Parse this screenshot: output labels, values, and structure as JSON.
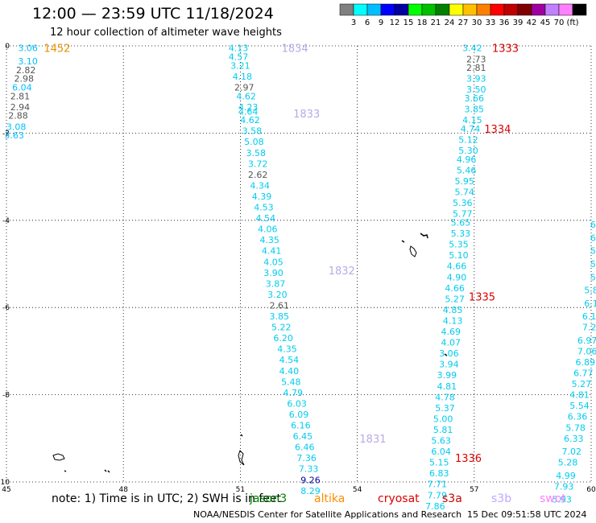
{
  "title": "12:00 — 23:59 UTC 11/18/2024",
  "subtitle": "12 hour collection of altimeter wave heights",
  "colorbar": {
    "colors": [
      "#808080",
      "#00ffff",
      "#00bfff",
      "#0000ff",
      "#0000a0",
      "#00ff00",
      "#00c000",
      "#008000",
      "#ffff00",
      "#ffc000",
      "#ff8000",
      "#ff0000",
      "#c00000",
      "#800000",
      "#a000a0",
      "#c080ff",
      "#ff80ff",
      "#000000"
    ],
    "labels": [
      "3",
      "6",
      "9",
      "12",
      "15",
      "18",
      "21",
      "24",
      "27",
      "30",
      "33",
      "36",
      "39",
      "42",
      "45",
      "70",
      "(ft)"
    ]
  },
  "axes": {
    "x_ticks": [
      "45",
      "48",
      "51",
      "54",
      "57",
      "60"
    ],
    "y_ticks": [
      "0",
      "-2",
      "-4",
      "-6",
      "-8",
      "-10"
    ]
  },
  "tracks": [
    {
      "color": "#00bfff",
      "points": [
        {
          "lon": 45.55,
          "lat": -0.05,
          "v": "3.06"
        },
        {
          "lon": 45.55,
          "lat": -0.35,
          "v": "3.10"
        },
        {
          "lon": 45.5,
          "lat": -0.55,
          "v": "2.82",
          "c": "#555555"
        },
        {
          "lon": 45.45,
          "lat": -0.75,
          "v": "2.98",
          "c": "#555555"
        },
        {
          "lon": 45.4,
          "lat": -0.95,
          "v": "6.04"
        },
        {
          "lon": 45.35,
          "lat": -1.15,
          "v": "2.81",
          "c": "#555555"
        },
        {
          "lon": 45.35,
          "lat": -1.4,
          "v": "2.94",
          "c": "#555555"
        },
        {
          "lon": 45.3,
          "lat": -1.6,
          "v": "2.88",
          "c": "#555555"
        },
        {
          "lon": 45.25,
          "lat": -1.85,
          "v": "3.08"
        },
        {
          "lon": 45.2,
          "lat": -2.05,
          "v": "3.63"
        }
      ]
    },
    {
      "color": "#00ccee",
      "points": [
        {
          "lon": 50.95,
          "lat": -0.05,
          "v": "4.13"
        },
        {
          "lon": 50.95,
          "lat": -0.25,
          "v": "4.57"
        },
        {
          "lon": 51.0,
          "lat": -0.45,
          "v": "3.21"
        },
        {
          "lon": 51.05,
          "lat": -0.7,
          "v": "4.18"
        },
        {
          "lon": 51.1,
          "lat": -0.95,
          "v": "2.97",
          "c": "#555555"
        },
        {
          "lon": 51.15,
          "lat": -1.15,
          "v": "4.62"
        },
        {
          "lon": 51.2,
          "lat": -1.4,
          "v": "4.23"
        },
        {
          "lon": 51.2,
          "lat": -1.5,
          "v": "4.64"
        },
        {
          "lon": 51.25,
          "lat": -1.7,
          "v": "4.62"
        },
        {
          "lon": 51.3,
          "lat": -1.95,
          "v": "3.58"
        },
        {
          "lon": 51.35,
          "lat": -2.2,
          "v": "5.08"
        },
        {
          "lon": 51.4,
          "lat": -2.45,
          "v": "3.58"
        },
        {
          "lon": 51.45,
          "lat": -2.7,
          "v": "3.72"
        },
        {
          "lon": 51.45,
          "lat": -2.95,
          "v": "2.62",
          "c": "#555555"
        },
        {
          "lon": 51.5,
          "lat": -3.2,
          "v": "4.34"
        },
        {
          "lon": 51.55,
          "lat": -3.45,
          "v": "4.39"
        },
        {
          "lon": 51.6,
          "lat": -3.7,
          "v": "4.53"
        },
        {
          "lon": 51.65,
          "lat": -3.95,
          "v": "4.54"
        },
        {
          "lon": 51.7,
          "lat": -4.2,
          "v": "4.06"
        },
        {
          "lon": 51.75,
          "lat": -4.45,
          "v": "4.35"
        },
        {
          "lon": 51.8,
          "lat": -4.7,
          "v": "4.41"
        },
        {
          "lon": 51.85,
          "lat": -4.95,
          "v": "4.05"
        },
        {
          "lon": 51.85,
          "lat": -5.2,
          "v": "3.90"
        },
        {
          "lon": 51.9,
          "lat": -5.45,
          "v": "3.87"
        },
        {
          "lon": 51.95,
          "lat": -5.7,
          "v": "3.20"
        },
        {
          "lon": 52.0,
          "lat": -5.95,
          "v": "2.61",
          "c": "#555555"
        },
        {
          "lon": 52.0,
          "lat": -6.2,
          "v": "3.85"
        },
        {
          "lon": 52.05,
          "lat": -6.45,
          "v": "5.22"
        },
        {
          "lon": 52.1,
          "lat": -6.7,
          "v": "6.20"
        },
        {
          "lon": 52.2,
          "lat": -6.95,
          "v": "4.35"
        },
        {
          "lon": 52.25,
          "lat": -7.2,
          "v": "4.54"
        },
        {
          "lon": 52.25,
          "lat": -7.45,
          "v": "4.40"
        },
        {
          "lon": 52.3,
          "lat": -7.7,
          "v": "5.48"
        },
        {
          "lon": 52.35,
          "lat": -7.95,
          "v": "4.79"
        },
        {
          "lon": 52.45,
          "lat": -8.2,
          "v": "6.03"
        },
        {
          "lon": 52.5,
          "lat": -8.45,
          "v": "6.09"
        },
        {
          "lon": 52.55,
          "lat": -8.7,
          "v": "6.16"
        },
        {
          "lon": 52.6,
          "lat": -8.95,
          "v": "6.45"
        },
        {
          "lon": 52.65,
          "lat": -9.2,
          "v": "6.46"
        },
        {
          "lon": 52.7,
          "lat": -9.45,
          "v": "7.36"
        },
        {
          "lon": 52.75,
          "lat": -9.7,
          "v": "7.33"
        },
        {
          "lon": 52.8,
          "lat": -9.95,
          "v": "9.26",
          "c": "#0000a0"
        },
        {
          "lon": 52.8,
          "lat": -10.2,
          "v": "8.29"
        }
      ]
    },
    {
      "color": "#00ccee",
      "points": [
        {
          "lon": 56.95,
          "lat": -0.05,
          "v": "3.42"
        },
        {
          "lon": 57.05,
          "lat": -0.3,
          "v": "2.73",
          "c": "#555555"
        },
        {
          "lon": 57.05,
          "lat": -0.5,
          "v": "2.81",
          "c": "#555555"
        },
        {
          "lon": 57.05,
          "lat": -0.75,
          "v": "3.93"
        },
        {
          "lon": 57.05,
          "lat": -1.0,
          "v": "3.50"
        },
        {
          "lon": 57.0,
          "lat": -1.2,
          "v": "3.66"
        },
        {
          "lon": 57.0,
          "lat": -1.45,
          "v": "3.85"
        },
        {
          "lon": 56.95,
          "lat": -1.7,
          "v": "4.15"
        },
        {
          "lon": 56.9,
          "lat": -1.9,
          "v": "4.74"
        },
        {
          "lon": 56.85,
          "lat": -2.15,
          "v": "5.12"
        },
        {
          "lon": 56.85,
          "lat": -2.4,
          "v": "5.30"
        },
        {
          "lon": 56.8,
          "lat": -2.6,
          "v": "4.96"
        },
        {
          "lon": 56.8,
          "lat": -2.85,
          "v": "5.46"
        },
        {
          "lon": 56.75,
          "lat": -3.1,
          "v": "5.95"
        },
        {
          "lon": 56.75,
          "lat": -3.35,
          "v": "5.74"
        },
        {
          "lon": 56.7,
          "lat": -3.6,
          "v": "5.36"
        },
        {
          "lon": 56.7,
          "lat": -3.85,
          "v": "5.77"
        },
        {
          "lon": 56.65,
          "lat": -4.05,
          "v": "5.65"
        },
        {
          "lon": 56.65,
          "lat": -4.3,
          "v": "5.33"
        },
        {
          "lon": 56.6,
          "lat": -4.55,
          "v": "5.35"
        },
        {
          "lon": 56.6,
          "lat": -4.8,
          "v": "5.10"
        },
        {
          "lon": 56.55,
          "lat": -5.05,
          "v": "4.66"
        },
        {
          "lon": 56.55,
          "lat": -5.3,
          "v": "4.90"
        },
        {
          "lon": 56.5,
          "lat": -5.55,
          "v": "4.66"
        },
        {
          "lon": 56.5,
          "lat": -5.8,
          "v": "5.27"
        },
        {
          "lon": 56.45,
          "lat": -6.05,
          "v": "4.85"
        },
        {
          "lon": 56.45,
          "lat": -6.3,
          "v": "4.13"
        },
        {
          "lon": 56.4,
          "lat": -6.55,
          "v": "4.69"
        },
        {
          "lon": 56.4,
          "lat": -6.8,
          "v": "4.07"
        },
        {
          "lon": 56.35,
          "lat": -7.05,
          "v": "3.06"
        },
        {
          "lon": 56.35,
          "lat": -7.3,
          "v": "3.94"
        },
        {
          "lon": 56.3,
          "lat": -7.55,
          "v": "3.99"
        },
        {
          "lon": 56.3,
          "lat": -7.8,
          "v": "4.81"
        },
        {
          "lon": 56.25,
          "lat": -8.05,
          "v": "4.78"
        },
        {
          "lon": 56.25,
          "lat": -8.3,
          "v": "5.37"
        },
        {
          "lon": 56.2,
          "lat": -8.55,
          "v": "5.00"
        },
        {
          "lon": 56.2,
          "lat": -8.8,
          "v": "5.81"
        },
        {
          "lon": 56.15,
          "lat": -9.05,
          "v": "5.63"
        },
        {
          "lon": 56.15,
          "lat": -9.3,
          "v": "6.04"
        },
        {
          "lon": 56.1,
          "lat": -9.55,
          "v": "5.15"
        },
        {
          "lon": 56.1,
          "lat": -9.8,
          "v": "6.83"
        },
        {
          "lon": 56.05,
          "lat": -10.05,
          "v": "7.71"
        },
        {
          "lon": 56.05,
          "lat": -10.3,
          "v": "7.79"
        },
        {
          "lon": 56.0,
          "lat": -10.55,
          "v": "7.86"
        }
      ]
    },
    {
      "color": "#00ccee",
      "points": [
        {
          "lon": 60.05,
          "lat": -4.1,
          "v": "6"
        },
        {
          "lon": 60.05,
          "lat": -4.4,
          "v": "6"
        },
        {
          "lon": 60.05,
          "lat": -4.7,
          "v": "5"
        },
        {
          "lon": 60.05,
          "lat": -5.0,
          "v": "5"
        },
        {
          "lon": 60.05,
          "lat": -5.3,
          "v": "5"
        },
        {
          "lon": 60.0,
          "lat": -5.6,
          "v": "5.8"
        },
        {
          "lon": 60.0,
          "lat": -5.9,
          "v": "6.1"
        },
        {
          "lon": 59.95,
          "lat": -6.2,
          "v": "6.1"
        },
        {
          "lon": 59.95,
          "lat": -6.45,
          "v": "7.2"
        },
        {
          "lon": 59.9,
          "lat": -6.75,
          "v": "6.97"
        },
        {
          "lon": 59.9,
          "lat": -7.0,
          "v": "7.06"
        },
        {
          "lon": 59.85,
          "lat": -7.25,
          "v": "6.89"
        },
        {
          "lon": 59.8,
          "lat": -7.5,
          "v": "6.77"
        },
        {
          "lon": 59.75,
          "lat": -7.75,
          "v": "5.27"
        },
        {
          "lon": 59.7,
          "lat": -8.0,
          "v": "4.81"
        },
        {
          "lon": 59.7,
          "lat": -8.25,
          "v": "5.54"
        },
        {
          "lon": 59.65,
          "lat": -8.5,
          "v": "6.36"
        },
        {
          "lon": 59.6,
          "lat": -8.75,
          "v": "5.78"
        },
        {
          "lon": 59.55,
          "lat": -9.0,
          "v": "6.33"
        },
        {
          "lon": 59.5,
          "lat": -9.3,
          "v": "7.02"
        },
        {
          "lon": 59.4,
          "lat": -9.55,
          "v": "5.28"
        },
        {
          "lon": 59.35,
          "lat": -9.85,
          "v": "4.99"
        },
        {
          "lon": 59.3,
          "lat": -10.1,
          "v": "7.93"
        },
        {
          "lon": 59.25,
          "lat": -10.4,
          "v": "5.93"
        }
      ]
    }
  ],
  "time_labels": [
    {
      "lon": 46.3,
      "lat": -0.05,
      "v": "1452",
      "c": "#e89000"
    },
    {
      "lon": 52.4,
      "lat": -0.05,
      "v": "1834",
      "c": "#b9a9e8"
    },
    {
      "lon": 52.7,
      "lat": -1.55,
      "v": "1833",
      "c": "#b9a9e8"
    },
    {
      "lon": 53.6,
      "lat": -5.15,
      "v": "1832",
      "c": "#b9a9e8"
    },
    {
      "lon": 54.4,
      "lat": -9.0,
      "v": "1831",
      "c": "#b9a9e8"
    },
    {
      "lon": 57.8,
      "lat": -0.05,
      "v": "1333",
      "c": "#dd0000"
    },
    {
      "lon": 57.6,
      "lat": -1.9,
      "v": "1334",
      "c": "#dd0000"
    },
    {
      "lon": 57.2,
      "lat": -5.75,
      "v": "1335",
      "c": "#dd0000"
    },
    {
      "lon": 56.85,
      "lat": -9.45,
      "v": "1336",
      "c": "#dd0000"
    }
  ],
  "note": "note:  1) Time is in UTC; 2) SWH is in feet",
  "legend": [
    {
      "name": "jason3",
      "color": "#008000"
    },
    {
      "name": "altika",
      "color": "#ff8c00"
    },
    {
      "name": "cryosat",
      "color": "#dd0000"
    },
    {
      "name": "s3a",
      "color": "#cc0000"
    },
    {
      "name": "s3b",
      "color": "#c0a8ff"
    },
    {
      "name": "swot",
      "color": "#ff80ff"
    }
  ],
  "footer": {
    "left": "NOAA/NESDIS Center for Satellite Applications and Research",
    "right": "15 Dec 09:51:58 UTC 2024"
  }
}
